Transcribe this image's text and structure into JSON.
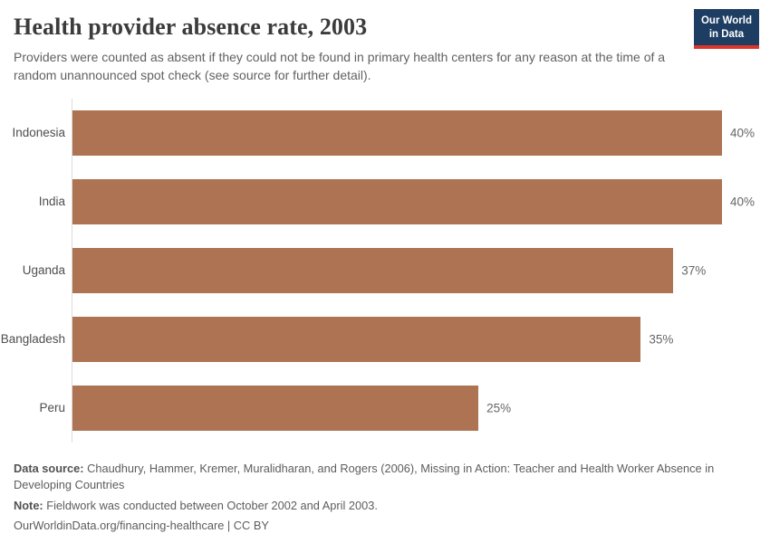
{
  "header": {
    "title": "Health provider absence rate, 2003",
    "subtitle": "Providers were counted as absent if they could not be found in primary health centers for any reason at the time of a random unannounced spot check (see source for further detail).",
    "logo": {
      "line1": "Our World",
      "line2": "in Data",
      "bg_color": "#1d3d63",
      "accent_color": "#dc352b"
    }
  },
  "chart_data": {
    "type": "bar",
    "orientation": "horizontal",
    "title": "Health provider absence rate, 2003",
    "categories": [
      "Indonesia",
      "India",
      "Uganda",
      "Bangladesh",
      "Peru"
    ],
    "values": [
      40,
      40,
      37,
      35,
      25
    ],
    "value_labels": [
      "40%",
      "40%",
      "37%",
      "35%",
      "25%"
    ],
    "unit": "%",
    "xlim": [
      0,
      40
    ],
    "grid": false,
    "legend": "none",
    "bar_color": "#ad7353",
    "axis_line_color": "#dcdcdc"
  },
  "footer": {
    "data_source_label": "Data source:",
    "data_source_text": "Chaudhury, Hammer, Kremer, Muralidharan, and Rogers (2006), Missing in Action: Teacher and Health Worker Absence in Developing Countries",
    "note_label": "Note:",
    "note_text": "Fieldwork was conducted between October 2002 and April 2003.",
    "license_line": "OurWorldinData.org/financing-healthcare | CC BY"
  }
}
